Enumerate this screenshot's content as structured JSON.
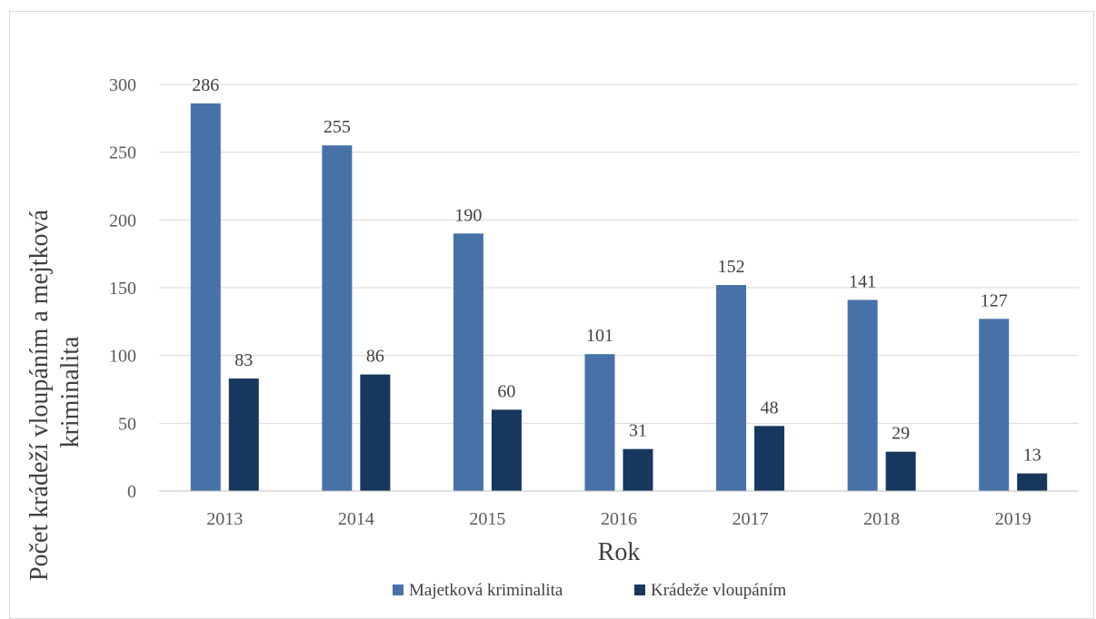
{
  "chart_data": {
    "type": "bar",
    "title": "",
    "xlabel": "Rok",
    "ylabel": "Počet krádeží vloupáním a mejtková kriminalita",
    "ylabel_lines": [
      "Počet krádeží vloupáním a mejtková",
      "kriminalita"
    ],
    "categories": [
      "2013",
      "2014",
      "2015",
      "2016",
      "2017",
      "2018",
      "2019"
    ],
    "series": [
      {
        "name": "Majetková kriminalita",
        "color": "#4672a8",
        "values": [
          286,
          255,
          190,
          101,
          152,
          141,
          127
        ]
      },
      {
        "name": "Krádeže vloupáním",
        "color": "#17375e",
        "values": [
          83,
          86,
          60,
          31,
          48,
          29,
          13
        ]
      }
    ],
    "ylim": [
      0,
      300
    ],
    "yticks": [
      0,
      50,
      100,
      150,
      200,
      250,
      300
    ],
    "grid": true,
    "legend": "bottom",
    "data_labels": true
  }
}
